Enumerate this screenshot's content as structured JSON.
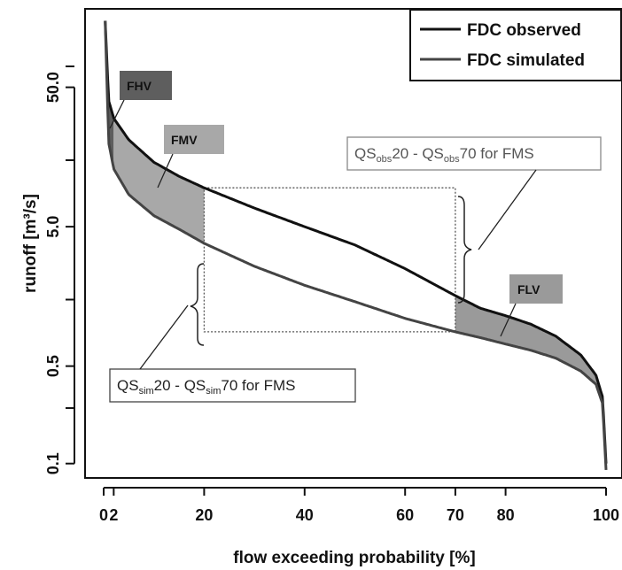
{
  "chart_data": {
    "type": "line",
    "title": "",
    "xlabel": "flow exceeding probability [%]",
    "ylabel": "runoff [m³/s]",
    "xlim": [
      0,
      100
    ],
    "ylim": [
      0.08,
      180
    ],
    "yscale": "log",
    "x_ticks": [
      0,
      2,
      20,
      40,
      60,
      70,
      80,
      100
    ],
    "y_ticks": [
      0.1,
      0.5,
      5.0,
      50.0
    ],
    "y_tick_labels": [
      "0.1",
      "0.5",
      "5.0",
      "50.0"
    ],
    "legend_position": "top-right",
    "series": [
      {
        "name": "FDC observed",
        "color": "#111111",
        "x": [
          0.3,
          1,
          2,
          5,
          10,
          15,
          20,
          30,
          40,
          50,
          60,
          70,
          75,
          80,
          85,
          90,
          95,
          98,
          99.3,
          100
        ],
        "y": [
          150,
          40,
          30,
          21,
          14.5,
          11.5,
          9.5,
          6.8,
          5.0,
          3.7,
          2.5,
          1.6,
          1.3,
          1.15,
          1.0,
          0.82,
          0.6,
          0.43,
          0.3,
          0.1
        ]
      },
      {
        "name": "FDC simulated",
        "color": "#444444",
        "x": [
          0.3,
          1,
          2,
          5,
          10,
          15,
          20,
          30,
          40,
          50,
          60,
          70,
          75,
          80,
          85,
          90,
          95,
          98,
          99.3,
          100
        ],
        "y": [
          150,
          20,
          13,
          8.5,
          6.0,
          4.8,
          3.8,
          2.6,
          1.9,
          1.45,
          1.1,
          0.88,
          0.8,
          0.72,
          0.65,
          0.57,
          0.46,
          0.37,
          0.27,
          0.09
        ]
      }
    ],
    "annotations": {
      "fhv": "FHV",
      "fmv": "FMV",
      "flv": "FLV",
      "qs_obs": {
        "prefix": "QS",
        "sub": "obs",
        "mid": "20 - QS",
        "sub2": "obs",
        "suffix": "70 for FMS"
      },
      "qs_sim": {
        "prefix": "QS",
        "sub": "sim",
        "mid": "20 - QS",
        "sub2": "sim",
        "suffix": "70 for FMS"
      }
    },
    "colors": {
      "fhv_fill": "#5e5e5e",
      "fmv_fill": "#a8a8a8",
      "flv_fill": "#9a9a9a",
      "area_fill": "#a0a0a0"
    }
  }
}
